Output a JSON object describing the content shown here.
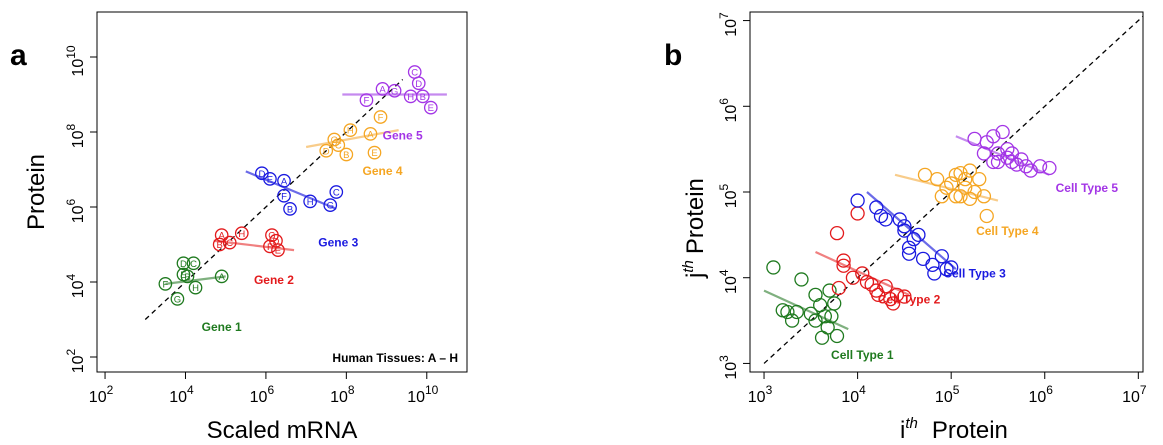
{
  "panels": [
    {
      "letter": "a",
      "xlabel": "Scaled mRNA",
      "ylabel": "Protein",
      "note": "Human Tissues: A – H"
    },
    {
      "letter": "b",
      "xlabel_sup": "th",
      "xlabel_rest": "Protein",
      "ylabel_sup": "th",
      "ylabel_rest": "Protein"
    }
  ],
  "chart_data": [
    {
      "type": "scatter",
      "x_scale": "log10",
      "y_scale": "log10",
      "xlim_exp": [
        1.8,
        11.0
      ],
      "ylim_exp": [
        1.6,
        11.2
      ],
      "x_ticks_exp": [
        2,
        4,
        6,
        8,
        10
      ],
      "y_ticks_exp": [
        2,
        4,
        6,
        8,
        10
      ],
      "tick_base": "10",
      "grid": false,
      "reference_line": {
        "type": "diagonal",
        "style": "dashed",
        "from_exp": [
          3.0,
          3.0
        ],
        "to_exp": [
          9.4,
          9.4
        ]
      },
      "series": [
        {
          "name": "Gene 1",
          "color": "#1f7a1f",
          "fit_color": "#7fb07f",
          "label_pos_exp": [
            4.9,
            2.7
          ],
          "fit_exp": [
            [
              3.5,
              3.95
            ],
            [
              5.0,
              4.15
            ]
          ],
          "points": [
            {
              "label": "A",
              "x_exp": 4.9,
              "y_exp": 4.15
            },
            {
              "label": "B",
              "x_exp": 4.05,
              "y_exp": 4.15
            },
            {
              "label": "C",
              "x_exp": 4.2,
              "y_exp": 4.5
            },
            {
              "label": "D",
              "x_exp": 3.95,
              "y_exp": 4.5
            },
            {
              "label": "E",
              "x_exp": 3.95,
              "y_exp": 4.2
            },
            {
              "label": "F",
              "x_exp": 3.5,
              "y_exp": 3.95
            },
            {
              "label": "G",
              "x_exp": 3.8,
              "y_exp": 3.55
            },
            {
              "label": "H",
              "x_exp": 4.25,
              "y_exp": 3.85
            }
          ]
        },
        {
          "name": "Gene 2",
          "color": "#e31a1c",
          "fit_color": "#f08080",
          "label_pos_exp": [
            6.2,
            3.95
          ],
          "fit_exp": [
            [
              4.7,
              5.1
            ],
            [
              6.7,
              4.85
            ]
          ],
          "points": [
            {
              "label": "A",
              "x_exp": 4.9,
              "y_exp": 5.25
            },
            {
              "label": "B",
              "x_exp": 4.85,
              "y_exp": 5.0
            },
            {
              "label": "C",
              "x_exp": 5.1,
              "y_exp": 5.05
            },
            {
              "label": "D",
              "x_exp": 6.25,
              "y_exp": 5.1
            },
            {
              "label": "E",
              "x_exp": 6.3,
              "y_exp": 4.85
            },
            {
              "label": "F",
              "x_exp": 6.1,
              "y_exp": 4.95
            },
            {
              "label": "G",
              "x_exp": 6.15,
              "y_exp": 5.25
            },
            {
              "label": "H",
              "x_exp": 5.4,
              "y_exp": 5.3
            }
          ]
        },
        {
          "name": "Gene 3",
          "color": "#1a1ae0",
          "fit_color": "#6b6be8",
          "label_pos_exp": [
            7.8,
            4.95
          ],
          "fit_exp": [
            [
              5.5,
              6.95
            ],
            [
              7.75,
              5.95
            ]
          ],
          "points": [
            {
              "label": "A",
              "x_exp": 6.45,
              "y_exp": 6.7
            },
            {
              "label": "B",
              "x_exp": 6.6,
              "y_exp": 5.95
            },
            {
              "label": "C",
              "x_exp": 7.75,
              "y_exp": 6.4
            },
            {
              "label": "D",
              "x_exp": 5.9,
              "y_exp": 6.9
            },
            {
              "label": "E",
              "x_exp": 6.1,
              "y_exp": 6.75
            },
            {
              "label": "F",
              "x_exp": 6.45,
              "y_exp": 6.3
            },
            {
              "label": "G",
              "x_exp": 7.6,
              "y_exp": 6.05
            },
            {
              "label": "H",
              "x_exp": 7.1,
              "y_exp": 6.15
            }
          ]
        },
        {
          "name": "Gene 4",
          "color": "#f5a623",
          "fit_color": "#f8cc8a",
          "label_pos_exp": [
            8.9,
            6.85
          ],
          "fit_exp": [
            [
              7.0,
              7.6
            ],
            [
              9.3,
              8.05
            ]
          ],
          "points": [
            {
              "label": "A",
              "x_exp": 8.6,
              "y_exp": 7.95
            },
            {
              "label": "B",
              "x_exp": 8.0,
              "y_exp": 7.4
            },
            {
              "label": "C",
              "x_exp": 7.8,
              "y_exp": 7.65
            },
            {
              "label": "D",
              "x_exp": 7.5,
              "y_exp": 7.5
            },
            {
              "label": "E",
              "x_exp": 8.7,
              "y_exp": 7.45
            },
            {
              "label": "F",
              "x_exp": 8.85,
              "y_exp": 8.4
            },
            {
              "label": "G",
              "x_exp": 7.7,
              "y_exp": 7.8
            },
            {
              "label": "H",
              "x_exp": 8.1,
              "y_exp": 8.05
            }
          ]
        },
        {
          "name": "Gene 5",
          "color": "#a335e6",
          "fit_color": "#c58aef",
          "label_pos_exp": [
            9.4,
            7.8
          ],
          "fit_exp": [
            [
              7.9,
              9.0
            ],
            [
              10.5,
              9.0
            ]
          ],
          "points": [
            {
              "label": "A",
              "x_exp": 8.9,
              "y_exp": 9.15
            },
            {
              "label": "B",
              "x_exp": 9.9,
              "y_exp": 8.95
            },
            {
              "label": "C",
              "x_exp": 9.7,
              "y_exp": 9.6
            },
            {
              "label": "D",
              "x_exp": 9.8,
              "y_exp": 9.3
            },
            {
              "label": "E",
              "x_exp": 10.1,
              "y_exp": 8.65
            },
            {
              "label": "F",
              "x_exp": 8.5,
              "y_exp": 8.85
            },
            {
              "label": "G",
              "x_exp": 9.2,
              "y_exp": 9.1
            },
            {
              "label": "H",
              "x_exp": 9.6,
              "y_exp": 8.95
            }
          ]
        }
      ]
    },
    {
      "type": "scatter",
      "x_scale": "log10",
      "y_scale": "log10",
      "xlim_exp": [
        2.85,
        7.05
      ],
      "ylim_exp": [
        2.9,
        7.1
      ],
      "x_ticks_exp": [
        3,
        4,
        5,
        6,
        7
      ],
      "y_ticks_exp": [
        3,
        4,
        5,
        6,
        7
      ],
      "tick_base": "10",
      "grid": false,
      "reference_line": {
        "type": "diagonal",
        "style": "dashed",
        "from_exp": [
          3.0,
          3.0
        ],
        "to_exp": [
          7.05,
          7.05
        ]
      },
      "series": [
        {
          "name": "Cell Type 1",
          "color": "#1f7a1f",
          "fit_color": "#7fb07f",
          "label_pos_exp": [
            4.05,
            3.05
          ],
          "fit_exp": [
            [
              3.0,
              3.85
            ],
            [
              3.9,
              3.4
            ]
          ],
          "points": [
            {
              "x_exp": 3.1,
              "y_exp": 4.12
            },
            {
              "x_exp": 3.25,
              "y_exp": 3.6
            },
            {
              "x_exp": 3.2,
              "y_exp": 3.62
            },
            {
              "x_exp": 3.35,
              "y_exp": 3.6
            },
            {
              "x_exp": 3.3,
              "y_exp": 3.5
            },
            {
              "x_exp": 3.4,
              "y_exp": 3.98
            },
            {
              "x_exp": 3.55,
              "y_exp": 3.8
            },
            {
              "x_exp": 3.6,
              "y_exp": 3.68
            },
            {
              "x_exp": 3.65,
              "y_exp": 3.55
            },
            {
              "x_exp": 3.7,
              "y_exp": 3.85
            },
            {
              "x_exp": 3.75,
              "y_exp": 3.7
            },
            {
              "x_exp": 3.68,
              "y_exp": 3.42
            },
            {
              "x_exp": 3.55,
              "y_exp": 3.5
            },
            {
              "x_exp": 3.62,
              "y_exp": 3.3
            },
            {
              "x_exp": 3.72,
              "y_exp": 3.55
            },
            {
              "x_exp": 3.78,
              "y_exp": 3.32
            },
            {
              "x_exp": 3.5,
              "y_exp": 3.58
            }
          ]
        },
        {
          "name": "Cell Type 2",
          "color": "#e31a1c",
          "fit_color": "#f08080",
          "label_pos_exp": [
            4.55,
            3.7
          ],
          "fit_exp": [
            [
              3.55,
              4.3
            ],
            [
              4.55,
              3.8
            ]
          ],
          "points": [
            {
              "x_exp": 3.78,
              "y_exp": 4.52
            },
            {
              "x_exp": 3.8,
              "y_exp": 3.88
            },
            {
              "x_exp": 3.85,
              "y_exp": 4.2
            },
            {
              "x_exp": 3.85,
              "y_exp": 4.14
            },
            {
              "x_exp": 3.95,
              "y_exp": 4.0
            },
            {
              "x_exp": 4.0,
              "y_exp": 4.75
            },
            {
              "x_exp": 4.05,
              "y_exp": 4.05
            },
            {
              "x_exp": 4.1,
              "y_exp": 3.95
            },
            {
              "x_exp": 4.15,
              "y_exp": 3.92
            },
            {
              "x_exp": 4.22,
              "y_exp": 3.8
            },
            {
              "x_exp": 4.3,
              "y_exp": 3.9
            },
            {
              "x_exp": 4.42,
              "y_exp": 3.8
            },
            {
              "x_exp": 4.35,
              "y_exp": 3.75
            },
            {
              "x_exp": 4.38,
              "y_exp": 3.7
            },
            {
              "x_exp": 4.5,
              "y_exp": 3.78
            },
            {
              "x_exp": 4.2,
              "y_exp": 3.85
            }
          ]
        },
        {
          "name": "Cell Type 3",
          "color": "#1a1ae0",
          "fit_color": "#6b6be8",
          "label_pos_exp": [
            5.25,
            4.0
          ],
          "fit_exp": [
            [
              4.1,
              5.0
            ],
            [
              5.05,
              4.1
            ]
          ],
          "points": [
            {
              "x_exp": 4.0,
              "y_exp": 4.9
            },
            {
              "x_exp": 4.2,
              "y_exp": 4.82
            },
            {
              "x_exp": 4.25,
              "y_exp": 4.72
            },
            {
              "x_exp": 4.3,
              "y_exp": 4.68
            },
            {
              "x_exp": 4.45,
              "y_exp": 4.68
            },
            {
              "x_exp": 4.5,
              "y_exp": 4.55
            },
            {
              "x_exp": 4.6,
              "y_exp": 4.45
            },
            {
              "x_exp": 4.55,
              "y_exp": 4.35
            },
            {
              "x_exp": 4.5,
              "y_exp": 4.6
            },
            {
              "x_exp": 4.65,
              "y_exp": 4.5
            },
            {
              "x_exp": 4.55,
              "y_exp": 4.28
            },
            {
              "x_exp": 4.8,
              "y_exp": 4.15
            },
            {
              "x_exp": 4.95,
              "y_exp": 4.1
            },
            {
              "x_exp": 4.9,
              "y_exp": 4.25
            },
            {
              "x_exp": 4.82,
              "y_exp": 4.05
            },
            {
              "x_exp": 5.0,
              "y_exp": 4.12
            },
            {
              "x_exp": 4.7,
              "y_exp": 4.22
            }
          ]
        },
        {
          "name": "Cell Type 4",
          "color": "#f5a623",
          "fit_color": "#f8cc8a",
          "label_pos_exp": [
            5.6,
            4.5
          ],
          "fit_exp": [
            [
              4.4,
              5.2
            ],
            [
              5.5,
              4.9
            ]
          ],
          "points": [
            {
              "x_exp": 4.72,
              "y_exp": 5.2
            },
            {
              "x_exp": 4.85,
              "y_exp": 5.15
            },
            {
              "x_exp": 4.95,
              "y_exp": 5.05
            },
            {
              "x_exp": 4.9,
              "y_exp": 4.95
            },
            {
              "x_exp": 5.0,
              "y_exp": 5.1
            },
            {
              "x_exp": 5.05,
              "y_exp": 5.2
            },
            {
              "x_exp": 5.1,
              "y_exp": 5.22
            },
            {
              "x_exp": 5.15,
              "y_exp": 5.15
            },
            {
              "x_exp": 5.2,
              "y_exp": 5.25
            },
            {
              "x_exp": 5.3,
              "y_exp": 5.15
            },
            {
              "x_exp": 5.25,
              "y_exp": 5.0
            },
            {
              "x_exp": 5.35,
              "y_exp": 4.95
            },
            {
              "x_exp": 5.1,
              "y_exp": 4.95
            },
            {
              "x_exp": 5.15,
              "y_exp": 5.05
            },
            {
              "x_exp": 5.2,
              "y_exp": 4.92
            },
            {
              "x_exp": 5.38,
              "y_exp": 4.72
            },
            {
              "x_exp": 5.05,
              "y_exp": 4.95
            }
          ]
        },
        {
          "name": "Cell Type 5",
          "color": "#a335e6",
          "fit_color": "#c58aef",
          "label_pos_exp": [
            6.45,
            5.0
          ],
          "fit_exp": [
            [
              5.05,
              5.65
            ],
            [
              6.05,
              5.2
            ]
          ],
          "points": [
            {
              "x_exp": 5.25,
              "y_exp": 5.62
            },
            {
              "x_exp": 5.35,
              "y_exp": 5.45
            },
            {
              "x_exp": 5.38,
              "y_exp": 5.58
            },
            {
              "x_exp": 5.45,
              "y_exp": 5.65
            },
            {
              "x_exp": 5.5,
              "y_exp": 5.45
            },
            {
              "x_exp": 5.55,
              "y_exp": 5.7
            },
            {
              "x_exp": 5.5,
              "y_exp": 5.35
            },
            {
              "x_exp": 5.6,
              "y_exp": 5.4
            },
            {
              "x_exp": 5.65,
              "y_exp": 5.35
            },
            {
              "x_exp": 5.7,
              "y_exp": 5.32
            },
            {
              "x_exp": 5.75,
              "y_exp": 5.38
            },
            {
              "x_exp": 5.65,
              "y_exp": 5.45
            },
            {
              "x_exp": 5.8,
              "y_exp": 5.3
            },
            {
              "x_exp": 5.85,
              "y_exp": 5.25
            },
            {
              "x_exp": 5.95,
              "y_exp": 5.3
            },
            {
              "x_exp": 6.05,
              "y_exp": 5.28
            },
            {
              "x_exp": 5.45,
              "y_exp": 5.35
            },
            {
              "x_exp": 5.6,
              "y_exp": 5.5
            }
          ]
        }
      ]
    }
  ]
}
